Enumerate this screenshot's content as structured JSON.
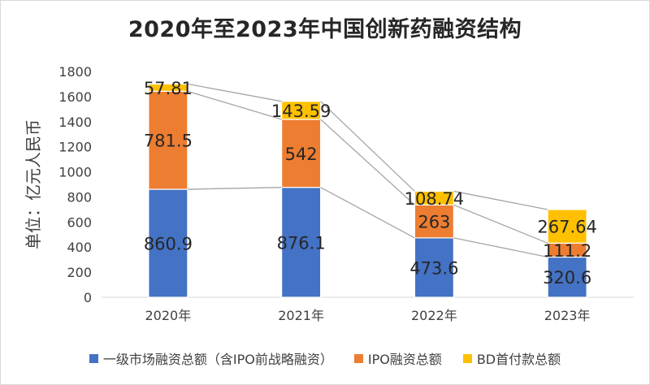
{
  "chart_data": {
    "type": "bar",
    "stacked": true,
    "title": "2020年至2023年中国创新药融资结构",
    "ylabel": "单位：亿元人民币",
    "xlabel": "",
    "ylim": [
      0,
      1800
    ],
    "yticks": [
      "0",
      "200",
      "400",
      "600",
      "800",
      "1000",
      "1200",
      "1400",
      "1600",
      "1800"
    ],
    "categories": [
      "2020年",
      "2021年",
      "2022年",
      "2023年"
    ],
    "series": [
      {
        "name": "一级市场融资总额（含IPO前战略融资）",
        "color": "#4472c4",
        "values": [
          860.9,
          876.1,
          473.6,
          320.6
        ],
        "labels": [
          "860.9",
          "876.1",
          "473.6",
          "320.6"
        ]
      },
      {
        "name": "IPO融资总额",
        "color": "#ed7d31",
        "values": [
          781.5,
          542,
          263,
          111.2
        ],
        "labels": [
          "781.5",
          "542",
          "263",
          "111.2"
        ]
      },
      {
        "name": "BD首付款总额",
        "color": "#ffc000",
        "values": [
          57.81,
          143.59,
          108.74,
          267.64
        ],
        "labels": [
          "57.81",
          "143.59",
          "108.74",
          "267.64"
        ]
      }
    ],
    "series_lines": true,
    "legend": "bottom",
    "grid": false
  }
}
